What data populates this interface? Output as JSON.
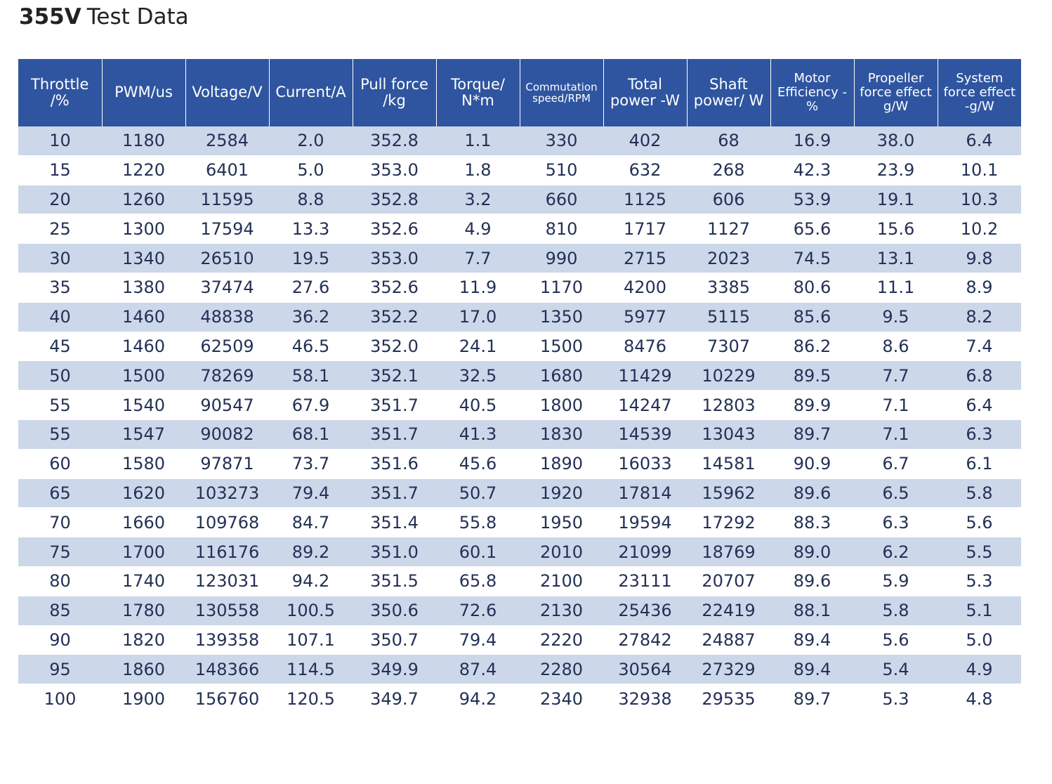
{
  "title": {
    "bold": "355V",
    "rest": "Test Data"
  },
  "table": {
    "headers": [
      "Throttle /%",
      "PWM/us",
      "Voltage/V",
      "Current/A",
      "Pull force /kg",
      "Torque/ N*m",
      "Commutation speed/RPM",
      "Total power -W",
      "Shaft power/ W",
      "Motor Efficiency -%",
      "Propeller force effect g/W",
      "System force effect -g/W"
    ],
    "rows": [
      [
        "10",
        "1180",
        "2584",
        "2.0",
        "352.8",
        "1.1",
        "330",
        "402",
        "68",
        "16.9",
        "38.0",
        "6.4"
      ],
      [
        "15",
        "1220",
        "6401",
        "5.0",
        "353.0",
        "1.8",
        "510",
        "632",
        "268",
        "42.3",
        "23.9",
        "10.1"
      ],
      [
        "20",
        "1260",
        "11595",
        "8.8",
        "352.8",
        "3.2",
        "660",
        "1125",
        "606",
        "53.9",
        "19.1",
        "10.3"
      ],
      [
        "25",
        "1300",
        "17594",
        "13.3",
        "352.6",
        "4.9",
        "810",
        "1717",
        "1127",
        "65.6",
        "15.6",
        "10.2"
      ],
      [
        "30",
        "1340",
        "26510",
        "19.5",
        "353.0",
        "7.7",
        "990",
        "2715",
        "2023",
        "74.5",
        "13.1",
        "9.8"
      ],
      [
        "35",
        "1380",
        "37474",
        "27.6",
        "352.6",
        "11.9",
        "1170",
        "4200",
        "3385",
        "80.6",
        "11.1",
        "8.9"
      ],
      [
        "40",
        "1460",
        "48838",
        "36.2",
        "352.2",
        "17.0",
        "1350",
        "5977",
        "5115",
        "85.6",
        "9.5",
        "8.2"
      ],
      [
        "45",
        "1460",
        "62509",
        "46.5",
        "352.0",
        "24.1",
        "1500",
        "8476",
        "7307",
        "86.2",
        "8.6",
        "7.4"
      ],
      [
        "50",
        "1500",
        "78269",
        "58.1",
        "352.1",
        "32.5",
        "1680",
        "11429",
        "10229",
        "89.5",
        "7.7",
        "6.8"
      ],
      [
        "55",
        "1540",
        "90547",
        "67.9",
        "351.7",
        "40.5",
        "1800",
        "14247",
        "12803",
        "89.9",
        "7.1",
        "6.4"
      ],
      [
        "55",
        "1547",
        "90082",
        "68.1",
        "351.7",
        "41.3",
        "1830",
        "14539",
        "13043",
        "89.7",
        "7.1",
        "6.3"
      ],
      [
        "60",
        "1580",
        "97871",
        "73.7",
        "351.6",
        "45.6",
        "1890",
        "16033",
        "14581",
        "90.9",
        "6.7",
        "6.1"
      ],
      [
        "65",
        "1620",
        "103273",
        "79.4",
        "351.7",
        "50.7",
        "1920",
        "17814",
        "15962",
        "89.6",
        "6.5",
        "5.8"
      ],
      [
        "70",
        "1660",
        "109768",
        "84.7",
        "351.4",
        "55.8",
        "1950",
        "19594",
        "17292",
        "88.3",
        "6.3",
        "5.6"
      ],
      [
        "75",
        "1700",
        "116176",
        "89.2",
        "351.0",
        "60.1",
        "2010",
        "21099",
        "18769",
        "89.0",
        "6.2",
        "5.5"
      ],
      [
        "80",
        "1740",
        "123031",
        "94.2",
        "351.5",
        "65.8",
        "2100",
        "23111",
        "20707",
        "89.6",
        "5.9",
        "5.3"
      ],
      [
        "85",
        "1780",
        "130558",
        "100.5",
        "350.6",
        "72.6",
        "2130",
        "25436",
        "22419",
        "88.1",
        "5.8",
        "5.1"
      ],
      [
        "90",
        "1820",
        "139358",
        "107.1",
        "350.7",
        "79.4",
        "2220",
        "27842",
        "24887",
        "89.4",
        "5.6",
        "5.0"
      ],
      [
        "95",
        "1860",
        "148366",
        "114.5",
        "349.9",
        "87.4",
        "2280",
        "30564",
        "27329",
        "89.4",
        "5.4",
        "4.9"
      ],
      [
        "100",
        "1900",
        "156760",
        "120.5",
        "349.7",
        "94.2",
        "2340",
        "32938",
        "29535",
        "89.7",
        "5.3",
        "4.8"
      ]
    ]
  },
  "colors": {
    "header_bg": "#2f55a0",
    "header_text": "#ffffff",
    "stripe_bg": "#cdd7ea",
    "body_text": "#233155"
  }
}
